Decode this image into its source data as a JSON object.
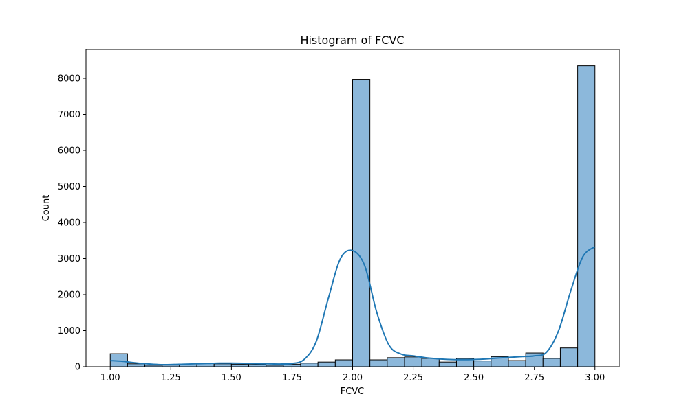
{
  "chart_data": {
    "type": "bar",
    "title": "Histogram of FCVC",
    "xlabel": "FCVC",
    "ylabel": "Count",
    "xlim": [
      0.9,
      3.1
    ],
    "ylim": [
      0,
      8800
    ],
    "xticks": [
      1.0,
      1.25,
      1.5,
      1.75,
      2.0,
      2.25,
      2.5,
      2.75,
      3.0
    ],
    "xtick_labels": [
      "1.00",
      "1.25",
      "1.50",
      "1.75",
      "2.00",
      "2.25",
      "2.50",
      "2.75",
      "3.00"
    ],
    "yticks": [
      0,
      1000,
      2000,
      3000,
      4000,
      5000,
      6000,
      7000,
      8000
    ],
    "ytick_labels": [
      "0",
      "1000",
      "2000",
      "3000",
      "4000",
      "5000",
      "6000",
      "7000",
      "8000"
    ],
    "bin_edges": [
      1.0,
      1.0714,
      1.1429,
      1.2143,
      1.2857,
      1.3571,
      1.4286,
      1.5,
      1.5714,
      1.6429,
      1.7143,
      1.7857,
      1.8571,
      1.9286,
      2.0,
      2.0714,
      2.1429,
      2.2143,
      2.2857,
      2.3571,
      2.4286,
      2.5,
      2.5714,
      2.6429,
      2.7143,
      2.7857,
      2.8571,
      2.9286,
      3.0
    ],
    "counts": [
      360,
      80,
      40,
      45,
      50,
      90,
      80,
      70,
      60,
      40,
      70,
      100,
      130,
      190,
      7970,
      190,
      250,
      270,
      230,
      130,
      230,
      160,
      280,
      170,
      380,
      230,
      520,
      8350
    ],
    "kde": {
      "x": [
        1.0,
        1.05,
        1.1,
        1.15,
        1.2,
        1.25,
        1.3,
        1.35,
        1.4,
        1.45,
        1.5,
        1.55,
        1.6,
        1.65,
        1.7,
        1.75,
        1.8,
        1.85,
        1.9,
        1.95,
        2.0,
        2.05,
        2.1,
        2.15,
        2.2,
        2.25,
        2.3,
        2.35,
        2.4,
        2.45,
        2.5,
        2.55,
        2.6,
        2.65,
        2.7,
        2.75,
        2.8,
        2.85,
        2.9,
        2.95,
        3.0
      ],
      "y": [
        170,
        150,
        110,
        80,
        60,
        60,
        70,
        80,
        90,
        100,
        100,
        95,
        85,
        80,
        75,
        90,
        200,
        700,
        1900,
        3000,
        3220,
        2800,
        1500,
        600,
        350,
        300,
        250,
        220,
        200,
        195,
        200,
        215,
        240,
        260,
        280,
        300,
        400,
        1000,
        2100,
        3050,
        3330
      ]
    },
    "bar_color": "#8cb8db",
    "bar_edge_color": "#000000",
    "line_color": "#1f77b4",
    "grid": false
  }
}
